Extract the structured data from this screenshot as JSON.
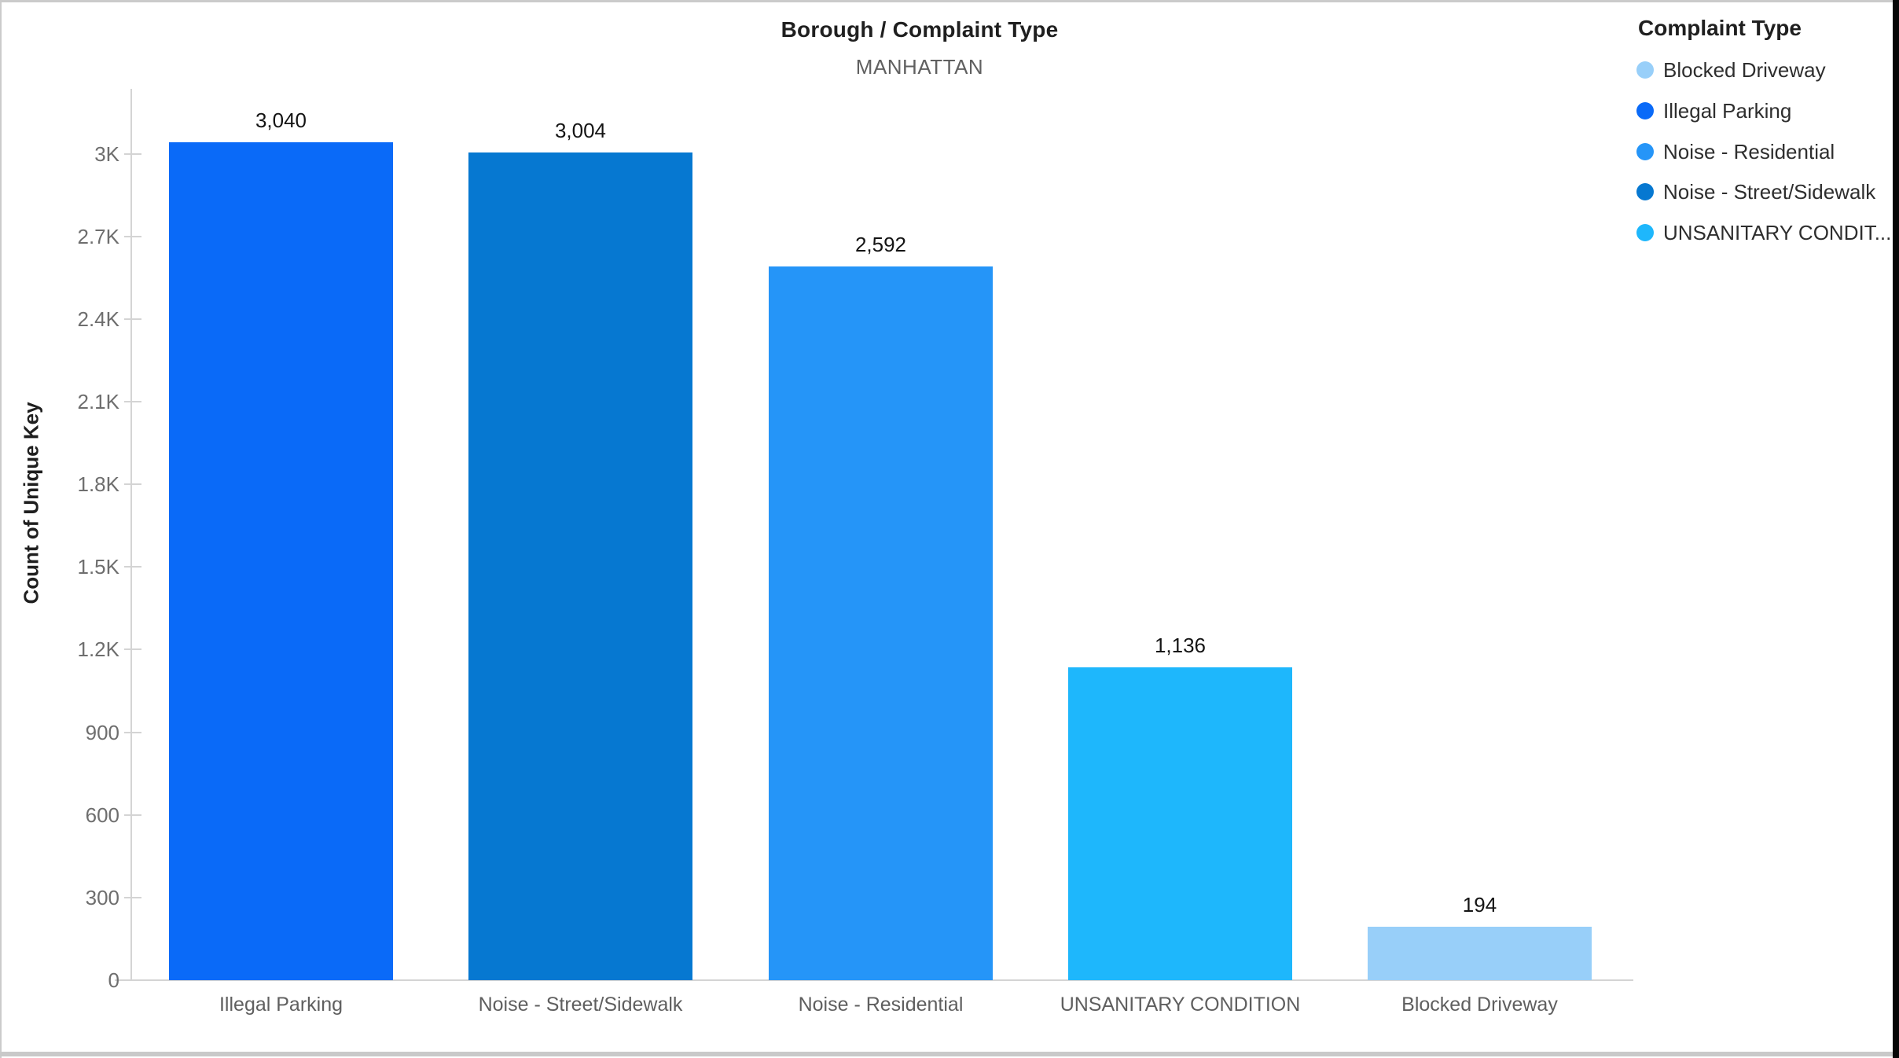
{
  "chart": {
    "title": "Borough / Complaint Type",
    "subtitle": "MANHATTAN",
    "ylabel": "Count of Unique Key"
  },
  "legend": {
    "title": "Complaint Type",
    "items": [
      {
        "label": "Blocked Driveway",
        "color": "#98cff9",
        "marker": "circle-icon"
      },
      {
        "label": "Illegal Parking",
        "color": "#0a6af8",
        "marker": "circle-icon"
      },
      {
        "label": "Noise - Residential",
        "color": "#2595f8",
        "marker": "circle-icon"
      },
      {
        "label": "Noise - Street/Sidewalk",
        "color": "#0678d1",
        "marker": "circle-icon"
      },
      {
        "label": "UNSANITARY CONDIT...",
        "color": "#1eb7fc",
        "marker": "circle-icon"
      }
    ]
  },
  "chart_data": {
    "type": "bar",
    "title": "Borough / Complaint Type",
    "subtitle": "MANHATTAN",
    "xlabel": "",
    "ylabel": "Count of Unique Key",
    "categories": [
      "Illegal Parking",
      "Noise - Street/Sidewalk",
      "Noise - Residential",
      "UNSANITARY CONDITION",
      "Blocked Driveway"
    ],
    "values": [
      3040,
      3004,
      2592,
      1136,
      194
    ],
    "value_labels": [
      "3,040",
      "3,004",
      "2,592",
      "1,136",
      "194"
    ],
    "bar_colors": [
      "#0a6af8",
      "#0678d1",
      "#2595f8",
      "#1eb7fc",
      "#98cff9"
    ],
    "ylim": [
      0,
      3200
    ],
    "yticks": {
      "values": [
        0,
        300,
        600,
        900,
        1200,
        1500,
        1800,
        2100,
        2400,
        2700,
        3000
      ],
      "labels": [
        "0",
        "300",
        "600",
        "900",
        "1.2K",
        "1.5K",
        "1.8K",
        "2.1K",
        "2.4K",
        "2.7K",
        "3K"
      ]
    },
    "grid": false,
    "legend_position": "right"
  }
}
